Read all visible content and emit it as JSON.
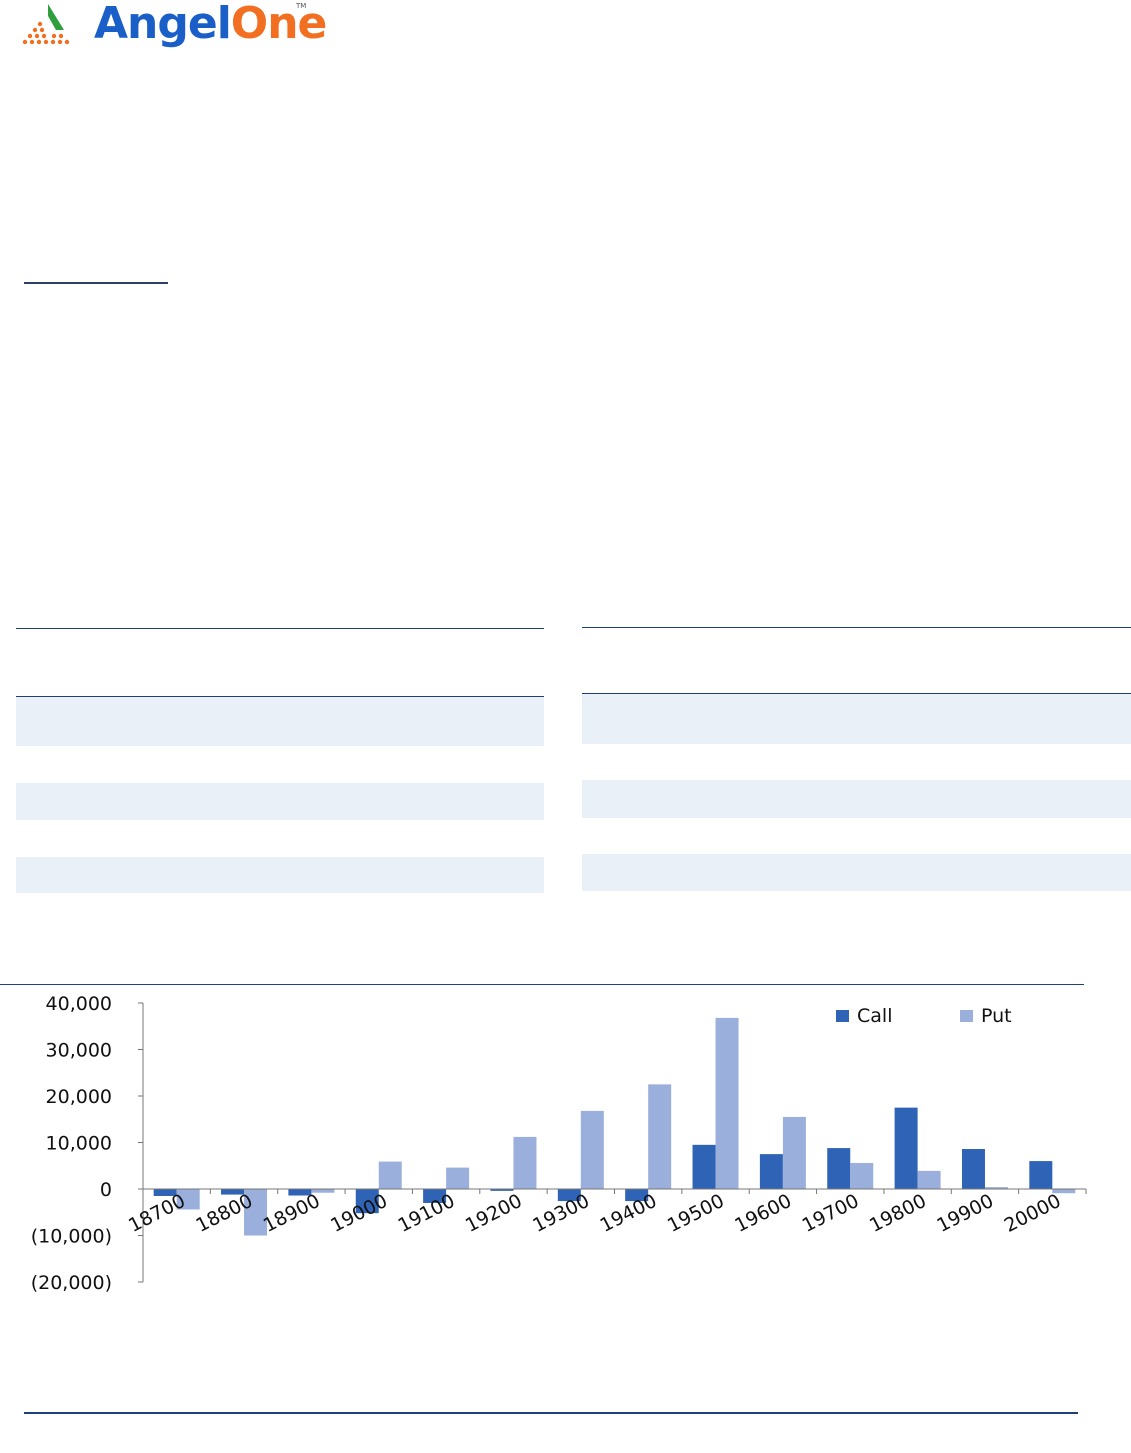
{
  "logo": {
    "name_part1": "Angel",
    "name_part2": "One",
    "tm": "TM"
  },
  "colors": {
    "call": "#2e63b5",
    "put": "#9aafdc",
    "band": "#eaf0f8",
    "rule": "#1f3f7a"
  },
  "chart_data": {
    "type": "bar",
    "title": "",
    "xlabel": "",
    "ylabel": "",
    "categories": [
      "18700",
      "18800",
      "18900",
      "19000",
      "19100",
      "19200",
      "19300",
      "19400",
      "19500",
      "19600",
      "19700",
      "19800",
      "19900",
      "20000"
    ],
    "series": [
      {
        "name": "Call",
        "values": [
          -1500,
          -1200,
          -1400,
          -5200,
          -3000,
          -400,
          -2600,
          -2600,
          9500,
          7500,
          8800,
          17500,
          8600,
          6000
        ]
      },
      {
        "name": "Put",
        "values": [
          -4400,
          -10000,
          -800,
          5900,
          4600,
          11200,
          16800,
          22500,
          36800,
          15500,
          5600,
          3900,
          400,
          -900
        ]
      }
    ],
    "ylim": [
      -20000,
      40000
    ],
    "yticks": [
      -20000,
      -10000,
      0,
      10000,
      20000,
      30000,
      40000
    ],
    "ytick_labels": [
      "(20,000)",
      "(10,000)",
      "0",
      "10,000",
      "20,000",
      "30,000",
      "40,000"
    ],
    "legend": "top-right",
    "grid": false
  }
}
